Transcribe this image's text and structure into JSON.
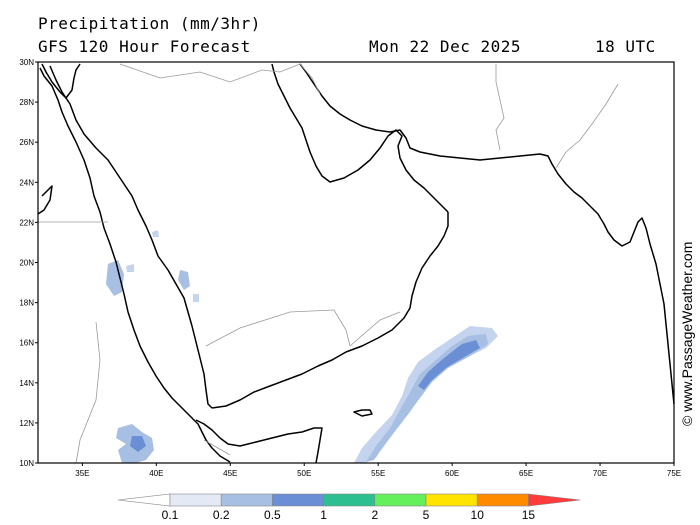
{
  "header": {
    "title": "Precipitation (mm/3hr)",
    "subtitle": "GFS 120 Hour Forecast",
    "date": "Mon 22 Dec 2025",
    "time": "18 UTC"
  },
  "credit": "© www.PassageWeather.com",
  "map": {
    "lat_labels": [
      "30N",
      "28N",
      "26N",
      "24N",
      "22N",
      "20N",
      "18N",
      "16N",
      "14N",
      "12N",
      "10N"
    ],
    "lon_labels": [
      "35E",
      "40E",
      "45E",
      "50E",
      "55E",
      "60E",
      "65E",
      "70E",
      "75E"
    ],
    "lat_range": [
      10,
      30
    ],
    "lon_range": [
      32,
      75
    ]
  },
  "legend": {
    "levels": [
      "0.1",
      "0.2",
      "0.5",
      "1",
      "2",
      "5",
      "10",
      "15"
    ],
    "colors": [
      "#ffffff",
      "#e3eaf6",
      "#a7bfe3",
      "#6a8fd4",
      "#2dbf8f",
      "#64f05a",
      "#ffe400",
      "#ff8a00",
      "#ff3b3b"
    ]
  },
  "precip_areas": [
    {
      "name": "arabian-sea-band-light",
      "color": "#a7bfe3"
    },
    {
      "name": "arabian-sea-band-core",
      "color": "#6a8fd4"
    },
    {
      "name": "red-sea-cell-west",
      "color": "#a7bfe3"
    },
    {
      "name": "red-sea-cell-east",
      "color": "#a7bfe3"
    },
    {
      "name": "ethiopia-cells",
      "color": "#a7bfe3"
    }
  ]
}
